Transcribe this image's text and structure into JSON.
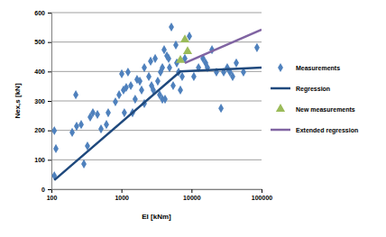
{
  "chart_data": {
    "type": "scatter",
    "x_label": "EI [kNm]",
    "y_label": "Nex,s [kN]",
    "log": "x",
    "grid": "y",
    "legend": "right",
    "xlim": [
      100,
      100000
    ],
    "xticks": [
      100,
      1000,
      10000,
      100000
    ],
    "ylim": [
      0,
      600
    ],
    "yticks": [
      0,
      100,
      200,
      300,
      400,
      500,
      600
    ],
    "series": [
      {
        "name": "Measurements",
        "type": "scatter",
        "marker": "diamond",
        "color": "#4f81bd",
        "x": [
          110,
          116,
          110,
          198,
          223,
          229,
          266,
          291,
          327,
          358,
          391,
          454,
          511,
          610,
          647,
          820,
          925,
          1010,
          1070,
          1100,
          1170,
          1240,
          1360,
          1440,
          1570,
          1670,
          1830,
          1940,
          2120,
          2120,
          2460,
          2610,
          2690,
          2850,
          3030,
          3300,
          3510,
          3610,
          3840,
          3840,
          4070,
          4190,
          4450,
          4720,
          4860,
          5160,
          5470,
          5980,
          6160,
          6540,
          6940,
          7360,
          8040,
          9330,
          10800,
          12600,
          14600,
          15900,
          16900,
          19600,
          22700,
          26400,
          28800,
          32400,
          35400,
          38700,
          43600,
          55200,
          86100
        ],
        "values": [
          46,
          138,
          199,
          193,
          321,
          214,
          220,
          86,
          147,
          245,
          260,
          254,
          205,
          220,
          260,
          297,
          321,
          392,
          337,
          260,
          346,
          398,
          352,
          260,
          306,
          373,
          367,
          337,
          413,
          291,
          383,
          435,
          352,
          337,
          444,
          367,
          321,
          398,
          306,
          413,
          474,
          306,
          453,
          444,
          413,
          551,
          352,
          490,
          429,
          398,
          337,
          383,
          444,
          520,
          383,
          413,
          444,
          429,
          413,
          474,
          398,
          275,
          398,
          413,
          398,
          383,
          429,
          398,
          481
        ]
      },
      {
        "name": "Regression",
        "type": "line",
        "line_style": "solid",
        "color": "#1f497d",
        "x": [
          110,
          6940,
          100000
        ],
        "values": [
          31,
          400,
          413
        ]
      },
      {
        "name": "New measurements",
        "type": "scatter",
        "marker": "triangle",
        "color": "#9bbb59",
        "x": [
          6940,
          8040,
          8790
        ],
        "values": [
          438,
          508,
          468
        ]
      },
      {
        "name": "Extended regression",
        "type": "line",
        "line_style": "solid",
        "color": "#8064a2",
        "x": [
          8040,
          100000
        ],
        "values": [
          429,
          542
        ]
      }
    ]
  }
}
